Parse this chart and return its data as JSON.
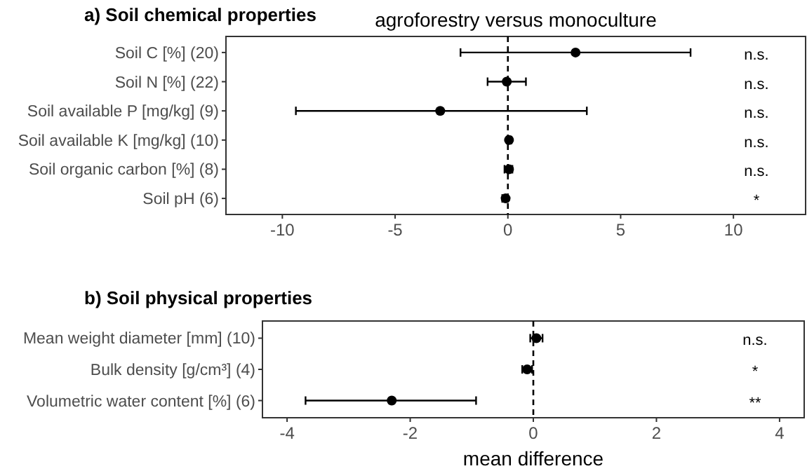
{
  "chart_data": [
    {
      "type": "scatter",
      "orientation": "horizontal",
      "title": "a) Soil chemical properties",
      "subtitle": "agroforestry versus monoculture",
      "categories": [
        "Soil C [%] (20)",
        "Soil N [%] (22)",
        "Soil available P [mg/kg] (9)",
        "Soil available K [mg/kg] (10)",
        "Soil organic carbon [%] (8)",
        "Soil pH (6)"
      ],
      "series": [
        {
          "color": "#000000",
          "values": [
            3.0,
            -0.05,
            -3.0,
            0.05,
            0.05,
            -0.1
          ],
          "errors": [
            [
              -2.1,
              8.1
            ],
            [
              -0.9,
              0.8
            ],
            [
              -9.4,
              3.5
            ],
            [
              -0.05,
              0.15
            ],
            [
              -0.15,
              0.2
            ],
            [
              -0.25,
              0
            ]
          ]
        }
      ],
      "xlim": [
        -12.5,
        13.2
      ],
      "xticks": [
        -10,
        -5,
        0,
        5,
        10
      ],
      "marker": "circle",
      "grid": false,
      "ref_lines": [
        {
          "axis": "x",
          "value": 0,
          "line_style": "dashed",
          "color": "#000000"
        }
      ],
      "annotations": [
        "n.s.",
        "n.s.",
        "n.s.",
        "n.s.",
        "n.s.",
        "*"
      ]
    },
    {
      "type": "scatter",
      "orientation": "horizontal",
      "title": "b) Soil physical properties",
      "xlabel": "mean difference",
      "categories": [
        "Mean weight diameter [mm] (10)",
        "Bulk density [g/cm³] (4)",
        "Volumetric water content [%] (6)"
      ],
      "series": [
        {
          "color": "#000000",
          "values": [
            0.05,
            -0.1,
            -2.3
          ],
          "errors": [
            [
              -0.05,
              0.15
            ],
            [
              -0.18,
              -0.02
            ],
            [
              -3.7,
              -0.93
            ]
          ]
        }
      ],
      "xlim": [
        -4.4,
        4.4
      ],
      "xticks": [
        -4,
        -2,
        0,
        2,
        4
      ],
      "marker": "circle",
      "grid": false,
      "ref_lines": [
        {
          "axis": "x",
          "value": 0,
          "line_style": "dashed",
          "color": "#000000"
        }
      ],
      "annotations": [
        "n.s.",
        "*",
        "**"
      ]
    }
  ]
}
